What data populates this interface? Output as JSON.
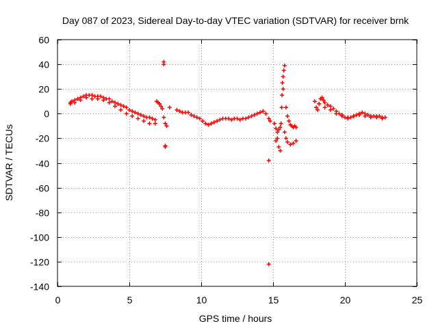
{
  "chart_data": {
    "type": "scatter",
    "title": "Day 087 of 2023, Sidereal Day-to-day VTEC variation (SDTVAR) for receiver brnk",
    "xlabel": "GPS time / hours",
    "ylabel": "SDTVAR / TECUs",
    "xlim": [
      0,
      25
    ],
    "ylim": [
      -140,
      60
    ],
    "xticks": [
      0,
      5,
      10,
      15,
      20,
      25
    ],
    "yticks": [
      -140,
      -120,
      -100,
      -80,
      -60,
      -40,
      -20,
      0,
      20,
      40,
      60
    ],
    "grid": true,
    "marker": "+",
    "series_color": "#ff0000",
    "series": [
      {
        "name": "SDTVAR",
        "x": [
          0.9,
          1.0,
          1.2,
          1.4,
          1.6,
          1.8,
          2.0,
          2.2,
          2.4,
          2.6,
          2.8,
          3.0,
          3.2,
          3.4,
          3.6,
          3.8,
          4.0,
          4.2,
          4.4,
          4.6,
          4.8,
          5.0,
          5.2,
          5.4,
          5.6,
          5.8,
          6.0,
          6.2,
          6.4,
          6.6,
          6.8,
          0.9,
          1.2,
          1.6,
          2.0,
          2.4,
          2.8,
          3.2,
          3.6,
          4.0,
          4.4,
          4.8,
          5.2,
          5.6,
          6.0,
          6.4,
          6.8,
          6.9,
          7.0,
          7.1,
          7.2,
          7.3,
          7.4,
          7.5,
          7.4,
          7.4,
          7.5,
          7.5,
          7.6,
          7.8,
          8.3,
          8.5,
          8.7,
          8.9,
          9.1,
          9.3,
          9.5,
          9.7,
          9.9,
          10.1,
          10.3,
          10.5,
          10.7,
          10.9,
          11.1,
          11.3,
          11.5,
          11.7,
          11.9,
          12.1,
          12.3,
          12.5,
          12.7,
          12.9,
          13.1,
          13.3,
          13.5,
          13.7,
          13.9,
          14.1,
          14.3,
          14.5,
          14.7,
          14.8,
          14.7,
          14.7,
          15.1,
          15.2,
          15.3,
          15.4,
          15.5,
          15.2,
          15.3,
          15.4,
          15.5,
          15.55,
          15.6,
          15.62,
          15.65,
          15.7,
          15.75,
          15.8,
          15.7,
          15.9,
          16.0,
          16.1,
          16.2,
          16.3,
          16.4,
          16.5,
          16.6,
          15.8,
          15.9,
          16.0,
          16.2,
          16.4,
          16.6,
          17.9,
          18.0,
          18.1,
          18.2,
          18.3,
          18.4,
          18.5,
          18.6,
          18.8,
          19.0,
          19.2,
          19.4,
          19.6,
          19.8,
          20.0,
          20.2,
          20.4,
          20.6,
          20.8,
          21.0,
          21.2,
          21.4,
          21.6,
          21.8,
          22.0,
          22.2,
          22.4,
          22.6,
          22.8,
          18.2,
          18.6,
          19.0,
          19.4,
          19.8,
          20.2,
          20.6,
          21.0,
          21.4,
          21.8,
          22.2,
          22.6
        ],
        "y": [
          9,
          10,
          11,
          12,
          13,
          14,
          15,
          15,
          15,
          14,
          14,
          14,
          13,
          12,
          12,
          10,
          9,
          8,
          7,
          6,
          5,
          3,
          2,
          1,
          0,
          -1,
          -2,
          -3,
          -3,
          -4,
          -5,
          8,
          9,
          11,
          13,
          12,
          12,
          11,
          9,
          6,
          3,
          0,
          -2,
          -4,
          -6,
          -8,
          -8,
          10,
          9,
          8,
          6,
          4,
          -3,
          -8,
          42,
          40,
          -27,
          -26,
          -10,
          5,
          3,
          2,
          1,
          1,
          1,
          -1,
          -2,
          -3,
          -4,
          -6,
          -8,
          -9,
          -8,
          -7,
          -6,
          -5,
          -4,
          -4,
          -4,
          -5,
          -4,
          -4,
          -5,
          -4,
          -4,
          -3,
          -2,
          -1,
          0,
          1,
          2,
          0,
          -4,
          -6,
          -38,
          -122,
          -8,
          -12,
          -20,
          -27,
          -30,
          -22,
          -15,
          -13,
          -11,
          -8,
          5,
          15,
          25,
          30,
          35,
          39,
          20,
          5,
          -2,
          -6,
          -9,
          -10,
          -11,
          -10,
          -11,
          -15,
          -20,
          -23,
          -25,
          -24,
          -22,
          10,
          5,
          3,
          8,
          12,
          13,
          11,
          9,
          7,
          6,
          4,
          2,
          0,
          -2,
          -3,
          -4,
          -3,
          -2,
          -1,
          0,
          1,
          0,
          -1,
          -2,
          -2,
          -2,
          -2,
          -3,
          -3,
          8,
          5,
          3,
          0,
          -1,
          -3,
          -2,
          -1,
          -2,
          -3,
          -3,
          -4
        ]
      }
    ]
  }
}
